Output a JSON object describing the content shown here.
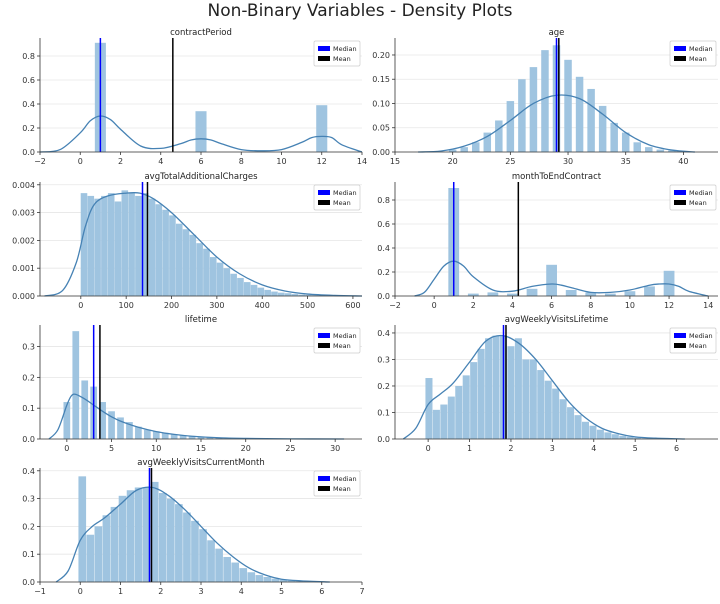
{
  "figure": {
    "suptitle": "Non-Binary Variables - Density Plots"
  },
  "colors": {
    "bar": "#9fc4e0",
    "kde": "#4682b4",
    "median": "#0000ff",
    "mean": "#000000",
    "legend_median": "#0000ff",
    "legend_mean": "#000000"
  },
  "chart_data": [
    {
      "type": "bar",
      "title": "contractPeriod",
      "xlim": [
        -2,
        14
      ],
      "ylim": [
        0,
        0.95
      ],
      "xticks": [
        -2,
        0,
        2,
        4,
        6,
        8,
        10,
        12,
        14
      ],
      "yticks": [
        0.0,
        0.2,
        0.4,
        0.6,
        0.8
      ],
      "xtick_labels": [
        "−2",
        "0",
        "2",
        "4",
        "6",
        "8",
        "10",
        "12",
        "14"
      ],
      "ytick_labels": [
        "0.0",
        "0.2",
        "0.4",
        "0.6",
        "0.8"
      ],
      "hist": {
        "x": [
          1,
          6,
          12
        ],
        "width": 0.55,
        "values": [
          0.91,
          0.34,
          0.39
        ]
      },
      "kde": {
        "x": [
          -2,
          -1,
          0,
          0.5,
          1,
          1.5,
          2,
          3,
          4,
          5,
          5.5,
          6,
          6.5,
          7,
          8,
          9,
          10,
          11,
          11.5,
          12,
          12.5,
          13,
          14
        ],
        "y": [
          0.0,
          0.02,
          0.16,
          0.26,
          0.3,
          0.27,
          0.19,
          0.05,
          0.03,
          0.07,
          0.1,
          0.11,
          0.1,
          0.07,
          0.02,
          0.01,
          0.02,
          0.08,
          0.12,
          0.13,
          0.12,
          0.06,
          0.0
        ]
      },
      "median": 1,
      "mean": 4.6,
      "legend": {
        "entries": [
          "Median",
          "Mean"
        ],
        "loc": "upper right"
      }
    },
    {
      "type": "bar",
      "title": "age",
      "xlim": [
        15,
        43
      ],
      "ylim": [
        0,
        0.235
      ],
      "xticks": [
        15,
        20,
        25,
        30,
        35,
        40
      ],
      "yticks": [
        0.0,
        0.05,
        0.1,
        0.15,
        0.2
      ],
      "xtick_labels": [
        "15",
        "20",
        "25",
        "30",
        "35",
        "40"
      ],
      "ytick_labels": [
        "0.00",
        "0.05",
        "0.10",
        "0.15",
        "0.20"
      ],
      "hist": {
        "x": [
          19,
          20,
          21,
          22,
          23,
          24,
          25,
          26,
          27,
          28,
          29,
          30,
          31,
          32,
          33,
          34,
          35,
          36,
          37,
          38,
          39,
          40,
          41
        ],
        "width": 0.65,
        "values": [
          0.0,
          0.005,
          0.01,
          0.02,
          0.04,
          0.065,
          0.105,
          0.15,
          0.175,
          0.21,
          0.22,
          0.19,
          0.155,
          0.13,
          0.095,
          0.06,
          0.04,
          0.02,
          0.01,
          0.005,
          0.003,
          0.002,
          0.0
        ]
      },
      "kde": {
        "x": [
          17,
          19,
          21,
          23,
          25,
          27,
          29,
          31,
          33,
          35,
          37,
          39,
          41
        ],
        "y": [
          0.0,
          0.002,
          0.012,
          0.032,
          0.065,
          0.1,
          0.117,
          0.11,
          0.078,
          0.04,
          0.015,
          0.004,
          0.0
        ]
      },
      "median": 29,
      "mean": 29.2,
      "legend": {
        "entries": [
          "Median",
          "Mean"
        ],
        "loc": "upper right"
      }
    },
    {
      "type": "bar",
      "title": "avgTotalAdditionalCharges",
      "xlim": [
        -90,
        620
      ],
      "ylim": [
        0,
        0.0041
      ],
      "xticks": [
        0,
        100,
        200,
        300,
        400,
        500,
        600
      ],
      "yticks": [
        0.0,
        0.001,
        0.002,
        0.003,
        0.004
      ],
      "xtick_labels": [
        "0",
        "100",
        "200",
        "300",
        "400",
        "500",
        "600"
      ],
      "ytick_labels": [
        "0.000",
        "0.001",
        "0.002",
        "0.003",
        "0.004"
      ],
      "hist": {
        "x": [
          7,
          22,
          37,
          52,
          67,
          82,
          97,
          112,
          127,
          142,
          157,
          172,
          187,
          202,
          217,
          232,
          247,
          262,
          277,
          292,
          307,
          322,
          337,
          352,
          367,
          382,
          397,
          412,
          427,
          442,
          457,
          472,
          487,
          502,
          517,
          532,
          547,
          562
        ],
        "width": 14.5,
        "values": [
          0.0037,
          0.0036,
          0.0035,
          0.0036,
          0.0037,
          0.0034,
          0.0038,
          0.0037,
          0.0036,
          0.0037,
          0.0035,
          0.0033,
          0.0031,
          0.0029,
          0.0026,
          0.0024,
          0.0022,
          0.0019,
          0.0017,
          0.0014,
          0.0012,
          0.001,
          0.0008,
          0.00065,
          0.0005,
          0.0004,
          0.0003,
          0.00022,
          0.00016,
          0.00012,
          0.0001,
          7e-05,
          5e-05,
          4e-05,
          3e-05,
          2e-05,
          1e-05,
          1e-05
        ]
      },
      "kde": {
        "x": [
          -80,
          -40,
          -10,
          10,
          30,
          60,
          100,
          130,
          160,
          200,
          250,
          300,
          350,
          400,
          450,
          500,
          560,
          620
        ],
        "y": [
          0.0,
          0.0002,
          0.0012,
          0.0025,
          0.0033,
          0.0036,
          0.0037,
          0.0037,
          0.0035,
          0.003,
          0.0022,
          0.0014,
          0.0008,
          0.0004,
          0.00018,
          7e-05,
          2e-05,
          0.0
        ]
      },
      "median": 136,
      "mean": 147,
      "legend": {
        "entries": [
          "Median",
          "Mean"
        ],
        "loc": "upper right"
      }
    },
    {
      "type": "bar",
      "title": "monthToEndContract",
      "xlim": [
        -2,
        14.5
      ],
      "ylim": [
        0,
        0.95
      ],
      "xticks": [
        -2,
        0,
        2,
        4,
        6,
        8,
        10,
        12,
        14
      ],
      "yticks": [
        0.0,
        0.2,
        0.4,
        0.6,
        0.8
      ],
      "xtick_labels": [
        "−2",
        "0",
        "2",
        "4",
        "6",
        "8",
        "10",
        "12",
        "14"
      ],
      "ytick_labels": [
        "0.0",
        "0.2",
        "0.4",
        "0.6",
        "0.8"
      ],
      "hist": {
        "x": [
          1,
          2,
          3,
          4,
          5,
          6,
          7,
          8,
          9,
          10,
          11,
          12
        ],
        "width": 0.55,
        "values": [
          0.9,
          0.02,
          0.03,
          0.02,
          0.06,
          0.26,
          0.05,
          0.03,
          0.02,
          0.04,
          0.08,
          0.21
        ]
      },
      "kde": {
        "x": [
          -1,
          -0.5,
          0,
          0.5,
          1,
          1.5,
          2,
          3,
          4,
          5,
          6,
          6.5,
          7,
          8,
          9,
          10,
          11,
          11.5,
          12,
          12.5,
          13,
          14
        ],
        "y": [
          0.0,
          0.03,
          0.14,
          0.25,
          0.29,
          0.25,
          0.16,
          0.05,
          0.04,
          0.08,
          0.1,
          0.09,
          0.07,
          0.03,
          0.03,
          0.05,
          0.09,
          0.1,
          0.1,
          0.08,
          0.04,
          0.0
        ]
      },
      "median": 1,
      "mean": 4.3,
      "legend": {
        "entries": [
          "Median",
          "Mean"
        ],
        "loc": "upper right"
      }
    },
    {
      "type": "bar",
      "title": "lifetime",
      "xlim": [
        -3,
        33
      ],
      "ylim": [
        0,
        0.37
      ],
      "xticks": [
        0,
        5,
        10,
        15,
        20,
        25,
        30
      ],
      "yticks": [
        0.0,
        0.1,
        0.2,
        0.3
      ],
      "xtick_labels": [
        "0",
        "5",
        "10",
        "15",
        "20",
        "25",
        "30"
      ],
      "ytick_labels": [
        "0.0",
        "0.1",
        "0.2",
        "0.3"
      ],
      "hist": {
        "x": [
          0,
          1,
          2,
          3,
          4,
          5,
          6,
          7,
          8,
          9,
          10,
          11,
          12,
          13,
          14,
          15,
          16,
          17,
          18,
          19,
          20,
          21,
          22
        ],
        "width": 0.75,
        "values": [
          0.12,
          0.35,
          0.19,
          0.17,
          0.12,
          0.09,
          0.07,
          0.055,
          0.04,
          0.03,
          0.025,
          0.02,
          0.015,
          0.012,
          0.01,
          0.008,
          0.006,
          0.005,
          0.004,
          0.003,
          0.002,
          0.002,
          0.001
        ]
      },
      "kde": {
        "x": [
          -2,
          -1,
          0,
          0.5,
          1,
          2,
          3,
          4,
          5,
          6,
          8,
          10,
          12,
          14,
          17,
          20,
          25,
          31
        ],
        "y": [
          0.0,
          0.03,
          0.11,
          0.14,
          0.145,
          0.13,
          0.11,
          0.09,
          0.072,
          0.058,
          0.038,
          0.024,
          0.015,
          0.009,
          0.004,
          0.002,
          0.0005,
          0.0
        ]
      },
      "median": 3,
      "mean": 3.7,
      "legend": {
        "entries": [
          "Median",
          "Mean"
        ],
        "loc": "upper right"
      }
    },
    {
      "type": "bar",
      "title": "avgWeeklyVisitsLifetime",
      "xlim": [
        -0.8,
        7.0
      ],
      "ylim": [
        0,
        0.43
      ],
      "xticks": [
        0,
        1,
        2,
        3,
        4,
        5,
        6
      ],
      "yticks": [
        0.0,
        0.1,
        0.2,
        0.3,
        0.4
      ],
      "xtick_labels": [
        "0",
        "1",
        "2",
        "3",
        "4",
        "5",
        "6"
      ],
      "ytick_labels": [
        "0.0",
        "0.1",
        "0.2",
        "0.3",
        "0.4"
      ],
      "hist": {
        "x": [
          0.02,
          0.2,
          0.38,
          0.56,
          0.74,
          0.92,
          1.1,
          1.28,
          1.46,
          1.64,
          1.82,
          2.0,
          2.18,
          2.36,
          2.54,
          2.72,
          2.9,
          3.08,
          3.26,
          3.44,
          3.62,
          3.8,
          3.98,
          4.16,
          4.34,
          4.52,
          4.7,
          4.88,
          5.06,
          5.24,
          5.42,
          5.6
        ],
        "width": 0.17,
        "values": [
          0.23,
          0.11,
          0.13,
          0.16,
          0.2,
          0.24,
          0.29,
          0.34,
          0.38,
          0.39,
          0.39,
          0.35,
          0.38,
          0.3,
          0.3,
          0.26,
          0.22,
          0.19,
          0.15,
          0.12,
          0.09,
          0.065,
          0.05,
          0.035,
          0.025,
          0.018,
          0.012,
          0.008,
          0.005,
          0.003,
          0.002,
          0.001
        ]
      },
      "kde": {
        "x": [
          -0.6,
          -0.3,
          0,
          0.3,
          0.6,
          1,
          1.4,
          1.8,
          2.2,
          2.6,
          3,
          3.4,
          3.8,
          4.2,
          4.6,
          5,
          5.5,
          6.2
        ],
        "y": [
          0.0,
          0.04,
          0.13,
          0.17,
          0.21,
          0.29,
          0.37,
          0.39,
          0.36,
          0.3,
          0.22,
          0.14,
          0.08,
          0.04,
          0.02,
          0.008,
          0.003,
          0.0
        ]
      },
      "median": 1.82,
      "mean": 1.88,
      "legend": {
        "entries": [
          "Median",
          "Mean"
        ],
        "loc": "upper right"
      }
    },
    {
      "type": "bar",
      "title": "avgWeeklyVisitsCurrentMonth",
      "xlim": [
        -1,
        7
      ],
      "ylim": [
        0,
        0.41
      ],
      "xticks": [
        -1,
        0,
        1,
        2,
        3,
        4,
        5,
        6,
        7
      ],
      "yticks": [
        0.0,
        0.1,
        0.2,
        0.3,
        0.4
      ],
      "xtick_labels": [
        "−1",
        "0",
        "1",
        "2",
        "3",
        "4",
        "5",
        "6",
        "7"
      ],
      "ytick_labels": [
        "0.0",
        "0.1",
        "0.2",
        "0.3",
        "0.4"
      ],
      "hist": {
        "x": [
          0.05,
          0.25,
          0.45,
          0.65,
          0.85,
          1.05,
          1.25,
          1.45,
          1.65,
          1.85,
          2.05,
          2.25,
          2.45,
          2.65,
          2.85,
          3.05,
          3.25,
          3.45,
          3.65,
          3.85,
          4.05,
          4.25,
          4.45,
          4.65,
          4.85,
          5.05,
          5.25,
          5.45,
          5.65
        ],
        "width": 0.19,
        "values": [
          0.38,
          0.17,
          0.2,
          0.24,
          0.27,
          0.31,
          0.33,
          0.34,
          0.34,
          0.36,
          0.32,
          0.3,
          0.28,
          0.25,
          0.22,
          0.19,
          0.15,
          0.12,
          0.09,
          0.07,
          0.05,
          0.035,
          0.025,
          0.018,
          0.012,
          0.008,
          0.005,
          0.003,
          0.002
        ]
      },
      "kde": {
        "x": [
          -0.6,
          -0.3,
          0,
          0.3,
          0.6,
          1,
          1.4,
          1.8,
          2.2,
          2.6,
          3,
          3.4,
          3.8,
          4.2,
          4.6,
          5,
          5.5,
          6.2
        ],
        "y": [
          0.0,
          0.04,
          0.15,
          0.2,
          0.23,
          0.28,
          0.33,
          0.34,
          0.31,
          0.26,
          0.2,
          0.14,
          0.09,
          0.05,
          0.025,
          0.01,
          0.004,
          0.0
        ]
      },
      "median": 1.72,
      "mean": 1.77,
      "legend": {
        "entries": [
          "Median",
          "Mean"
        ],
        "loc": "upper right"
      }
    }
  ]
}
